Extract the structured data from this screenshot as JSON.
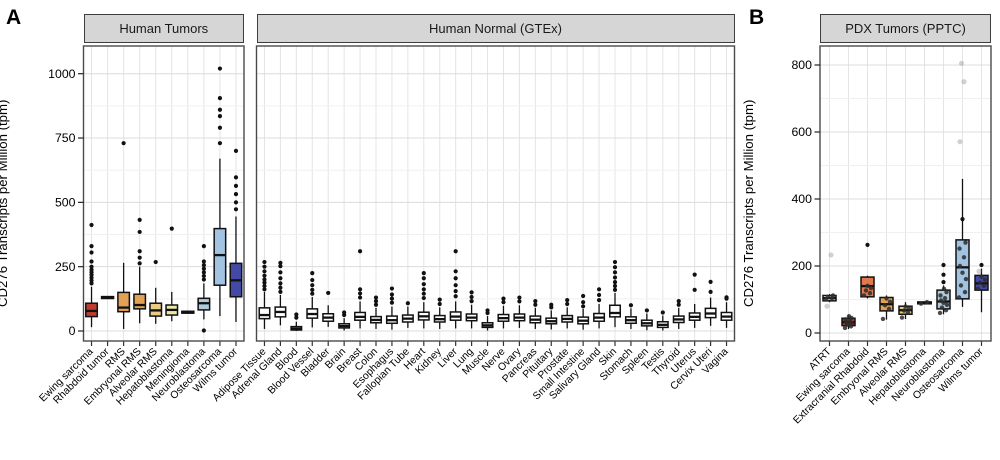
{
  "labels": {
    "panel_a": "A",
    "panel_b": "B",
    "y_axis_a": "CD276 Transcripts per Million (tpm)",
    "y_axis_b": "CD276 Transcripts per Million (tpm)",
    "facet_tumors": "Human Tumors",
    "facet_gtex": "Human Normal (GTEx)",
    "facet_pdx": "PDX Tumors (PPTC)"
  },
  "colors": {
    "ewing_red": "#bf3b2f",
    "rms_orange": "#e2a155",
    "alveolar_tan": "#e9cd84",
    "hepato_yellow": "#ece9a6",
    "neuro_lightblue": "#aecbdc",
    "osteo_blue": "#a2c4e2",
    "wilms_darkblue": "#4349a5",
    "rhabdoid_coral": "#e0794e",
    "facet_header_gray": "#d6d6d6",
    "gtex_white": "#ffffff"
  },
  "chart_data": [
    {
      "id": "human_tumors",
      "type": "boxplot",
      "facet": "Human Tumors",
      "ylabel": "CD276 Transcripts per Million (tpm)",
      "yticks": [
        0,
        250,
        500,
        750,
        1000
      ],
      "ylim": [
        0,
        1050
      ],
      "grid": true,
      "boxes": [
        {
          "label": "Ewing sarcoma",
          "color": "#bf3b2f",
          "q1": 56,
          "median": 78,
          "q3": 108,
          "whisker_low": 15,
          "whisker_high": 172,
          "outliers": [
            185,
            196,
            207,
            218,
            228,
            238,
            250,
            270,
            305,
            330,
            412
          ]
        },
        {
          "label": "Rhabdoid tumor",
          "color": "#1a1a1a",
          "dash": true,
          "median": 130
        },
        {
          "label": "RMS",
          "color": "#e2a155",
          "q1": 75,
          "median": 91,
          "q3": 150,
          "whisker_low": 8,
          "whisker_high": 265,
          "outliers": [
            730
          ]
        },
        {
          "label": "Embryonal RMS",
          "color": "#e2a155",
          "q1": 86,
          "median": 101,
          "q3": 143,
          "whisker_low": 30,
          "whisker_high": 250,
          "outliers": [
            263,
            285,
            310,
            385,
            432
          ]
        },
        {
          "label": "Alveolar RMS",
          "color": "#e9cd84",
          "q1": 58,
          "median": 80,
          "q3": 108,
          "whisker_low": 28,
          "whisker_high": 168,
          "outliers": [
            268
          ]
        },
        {
          "label": "Hepatoblastoma",
          "color": "#ece9a6",
          "q1": 62,
          "median": 82,
          "q3": 101,
          "whisker_low": 38,
          "whisker_high": 152,
          "outliers": [
            398
          ]
        },
        {
          "label": "Meningioma",
          "color": "#1a1a1a",
          "dash": true,
          "median": 73
        },
        {
          "label": "Neuroblastoma",
          "color": "#aecbdc",
          "q1": 82,
          "median": 108,
          "q3": 127,
          "whisker_low": 45,
          "whisker_high": 185,
          "outliers": [
            2,
            200,
            214,
            228,
            242,
            256,
            270,
            330
          ]
        },
        {
          "label": "Osteosarcoma",
          "color": "#a2c4e2",
          "q1": 178,
          "median": 295,
          "q3": 398,
          "whisker_low": 58,
          "whisker_high": 670,
          "outliers": [
            730,
            790,
            835,
            860,
            905,
            1020
          ]
        },
        {
          "label": "Wilms tumor",
          "color": "#4349a5",
          "q1": 133,
          "median": 197,
          "q3": 263,
          "whisker_low": 35,
          "whisker_high": 445,
          "outliers": [
            473,
            500,
            532,
            564,
            597,
            700
          ]
        }
      ]
    },
    {
      "id": "gtex_normal",
      "type": "boxplot",
      "facet": "Human Normal (GTEx)",
      "ylabel": "CD276 Transcripts per Million (tpm)",
      "yticks": [
        0,
        250,
        500,
        750,
        1000
      ],
      "ylim": [
        0,
        1050
      ],
      "grid": true,
      "boxes": [
        {
          "label": "Adipose Tissue",
          "color": "#ffffff",
          "q1": 48,
          "median": 62,
          "q3": 90,
          "whisker_low": 8,
          "whisker_high": 152,
          "outliers": [
            162,
            175,
            188,
            200,
            215,
            232,
            250,
            268
          ]
        },
        {
          "label": "Adrenal Gland",
          "color": "#ffffff",
          "q1": 55,
          "median": 74,
          "q3": 93,
          "whisker_low": 22,
          "whisker_high": 140,
          "outliers": [
            152,
            168,
            185,
            205,
            228,
            252,
            265
          ]
        },
        {
          "label": "Blood",
          "color": "#ffffff",
          "q1": 4,
          "median": 9,
          "q3": 17,
          "whisker_low": 0,
          "whisker_high": 36,
          "outliers": [
            52,
            64
          ]
        },
        {
          "label": "Blood Vessel",
          "color": "#ffffff",
          "q1": 50,
          "median": 66,
          "q3": 86,
          "whisker_low": 14,
          "whisker_high": 132,
          "outliers": [
            145,
            160,
            178,
            198,
            225
          ]
        },
        {
          "label": "Bladder",
          "color": "#ffffff",
          "q1": 38,
          "median": 52,
          "q3": 67,
          "whisker_low": 16,
          "whisker_high": 100,
          "outliers": [
            148
          ]
        },
        {
          "label": "Brain",
          "color": "#ffffff",
          "q1": 12,
          "median": 19,
          "q3": 28,
          "whisker_low": 2,
          "whisker_high": 50,
          "outliers": [
            62,
            72
          ]
        },
        {
          "label": "Breast",
          "color": "#ffffff",
          "q1": 42,
          "median": 55,
          "q3": 72,
          "whisker_low": 10,
          "whisker_high": 115,
          "outliers": [
            130,
            146,
            162,
            310
          ]
        },
        {
          "label": "Colon",
          "color": "#ffffff",
          "q1": 32,
          "median": 43,
          "q3": 56,
          "whisker_low": 8,
          "whisker_high": 90,
          "outliers": [
            102,
            116,
            130
          ]
        },
        {
          "label": "Esophagus",
          "color": "#ffffff",
          "q1": 30,
          "median": 42,
          "q3": 58,
          "whisker_low": 5,
          "whisker_high": 95,
          "outliers": [
            110,
            126,
            142,
            165
          ]
        },
        {
          "label": "Fallopian Tube",
          "color": "#ffffff",
          "q1": 35,
          "median": 48,
          "q3": 62,
          "whisker_low": 12,
          "whisker_high": 95,
          "outliers": [
            108
          ]
        },
        {
          "label": "Heart",
          "color": "#ffffff",
          "q1": 43,
          "median": 57,
          "q3": 73,
          "whisker_low": 10,
          "whisker_high": 112,
          "outliers": [
            128,
            145,
            162,
            182,
            205,
            225
          ]
        },
        {
          "label": "Kidney",
          "color": "#ffffff",
          "q1": 35,
          "median": 46,
          "q3": 60,
          "whisker_low": 8,
          "whisker_high": 92,
          "outliers": [
            105,
            122
          ]
        },
        {
          "label": "Liver",
          "color": "#ffffff",
          "q1": 42,
          "median": 56,
          "q3": 74,
          "whisker_low": 10,
          "whisker_high": 115,
          "outliers": [
            135,
            155,
            178,
            205,
            232,
            310
          ]
        },
        {
          "label": "Lung",
          "color": "#ffffff",
          "q1": 40,
          "median": 52,
          "q3": 66,
          "whisker_low": 10,
          "whisker_high": 102,
          "outliers": [
            116,
            132,
            150
          ]
        },
        {
          "label": "Muscle",
          "color": "#ffffff",
          "q1": 14,
          "median": 22,
          "q3": 32,
          "whisker_low": 2,
          "whisker_high": 58,
          "outliers": [
            70,
            80
          ]
        },
        {
          "label": "Nerve",
          "color": "#ffffff",
          "q1": 38,
          "median": 50,
          "q3": 64,
          "whisker_low": 10,
          "whisker_high": 98,
          "outliers": [
            112,
            126
          ]
        },
        {
          "label": "Ovary",
          "color": "#ffffff",
          "q1": 40,
          "median": 52,
          "q3": 66,
          "whisker_low": 12,
          "whisker_high": 100,
          "outliers": [
            115,
            130
          ]
        },
        {
          "label": "Pancreas",
          "color": "#ffffff",
          "q1": 32,
          "median": 44,
          "q3": 58,
          "whisker_low": 8,
          "whisker_high": 90,
          "outliers": [
            102,
            116
          ]
        },
        {
          "label": "Pituitary",
          "color": "#ffffff",
          "q1": 28,
          "median": 38,
          "q3": 50,
          "whisker_low": 6,
          "whisker_high": 80,
          "outliers": [
            92,
            102
          ]
        },
        {
          "label": "Prostate",
          "color": "#ffffff",
          "q1": 35,
          "median": 47,
          "q3": 60,
          "whisker_low": 10,
          "whisker_high": 92,
          "outliers": [
            105,
            120
          ]
        },
        {
          "label": "Small Intestine",
          "color": "#ffffff",
          "q1": 28,
          "median": 40,
          "q3": 54,
          "whisker_low": 5,
          "whisker_high": 86,
          "outliers": [
            96,
            112,
            136
          ]
        },
        {
          "label": "Salivary Gland",
          "color": "#ffffff",
          "q1": 38,
          "median": 52,
          "q3": 68,
          "whisker_low": 10,
          "whisker_high": 105,
          "outliers": [
            120,
            140,
            162
          ]
        },
        {
          "label": "Skin",
          "color": "#ffffff",
          "q1": 55,
          "median": 70,
          "q3": 100,
          "whisker_low": 15,
          "whisker_high": 148,
          "outliers": [
            160,
            175,
            190,
            208,
            228,
            248,
            268
          ]
        },
        {
          "label": "Stomach",
          "color": "#ffffff",
          "q1": 30,
          "median": 42,
          "q3": 55,
          "whisker_low": 8,
          "whisker_high": 88,
          "outliers": [
            100
          ]
        },
        {
          "label": "Spleen",
          "color": "#ffffff",
          "q1": 20,
          "median": 30,
          "q3": 42,
          "whisker_low": 3,
          "whisker_high": 68,
          "outliers": [
            80
          ]
        },
        {
          "label": "Testis",
          "color": "#ffffff",
          "q1": 14,
          "median": 24,
          "q3": 36,
          "whisker_low": 2,
          "whisker_high": 60,
          "outliers": [
            72
          ]
        },
        {
          "label": "Thyroid",
          "color": "#ffffff",
          "q1": 33,
          "median": 45,
          "q3": 58,
          "whisker_low": 8,
          "whisker_high": 90,
          "outliers": [
            102,
            116
          ]
        },
        {
          "label": "Uterus",
          "color": "#ffffff",
          "q1": 42,
          "median": 55,
          "q3": 70,
          "whisker_low": 12,
          "whisker_high": 105,
          "outliers": [
            160,
            219
          ]
        },
        {
          "label": "Cervix Uteri",
          "color": "#ffffff",
          "q1": 52,
          "median": 68,
          "q3": 88,
          "whisker_low": 20,
          "whisker_high": 130,
          "outliers": [
            152,
            191
          ]
        },
        {
          "label": "Vagina",
          "color": "#ffffff",
          "q1": 42,
          "median": 56,
          "q3": 72,
          "whisker_low": 12,
          "whisker_high": 112,
          "outliers": [
            126,
            131
          ]
        }
      ]
    },
    {
      "id": "pdx_tumors",
      "type": "boxplot",
      "facet": "PDX Tumors (PPTC)",
      "ylabel": "CD276 Transcripts per Million (tpm)",
      "yticks": [
        0,
        200,
        400,
        600,
        800
      ],
      "ylim": [
        0,
        850
      ],
      "grid": true,
      "boxes": [
        {
          "label": "ATRT",
          "color": "#f0f0f0",
          "q1": 96,
          "median": 104,
          "q3": 112,
          "whisker_low": 92,
          "whisker_high": 116,
          "points": [
            100,
            104,
            108,
            112
          ],
          "faded_points": [
            80,
            233
          ]
        },
        {
          "label": "Ewing sarcoma",
          "color": "#bf3b2f",
          "q1": 22,
          "median": 32,
          "q3": 44,
          "whisker_low": 12,
          "whisker_high": 52,
          "points": [
            15,
            20,
            25,
            28,
            31,
            34,
            37,
            41,
            45,
            50
          ]
        },
        {
          "label": "Extracranial Rhabdoid",
          "color": "#e0794e",
          "q1": 108,
          "median": 140,
          "q3": 167,
          "whisker_low": 103,
          "whisker_high": 171,
          "outliers": [
            263
          ],
          "points": [
            112,
            119,
            127,
            134,
            141
          ]
        },
        {
          "label": "Embryonal RMS",
          "color": "#e2a155",
          "q1": 66,
          "median": 86,
          "q3": 106,
          "whisker_low": 40,
          "whisker_high": 112,
          "points": [
            42,
            72,
            83,
            93,
            103
          ]
        },
        {
          "label": "Alveolar RMS",
          "color": "#e9cd84",
          "q1": 56,
          "median": 68,
          "q3": 80,
          "whisker_low": 42,
          "whisker_high": 92,
          "points": [
            46,
            60,
            67,
            73,
            79
          ]
        },
        {
          "label": "Hepatoblastoma",
          "color": "#1a1a1a",
          "dash": true,
          "median": 90,
          "points": [
            88,
            92
          ]
        },
        {
          "label": "Neuroblastoma",
          "color": "#aecbdc",
          "q1": 72,
          "median": 94,
          "q3": 128,
          "whisker_low": 56,
          "whisker_high": 142,
          "outliers": [
            152,
            174,
            203
          ],
          "points": [
            60,
            68,
            76,
            84,
            90,
            97,
            104,
            112,
            122,
            132
          ]
        },
        {
          "label": "Osteosarcoma",
          "color": "#a2c4e2",
          "q1": 102,
          "median": 196,
          "q3": 278,
          "whisker_low": 78,
          "whisker_high": 460,
          "outliers": [
            340
          ],
          "points": [
            106,
            122,
            142,
            161,
            180,
            200,
            226,
            252,
            270
          ],
          "faded_points": [
            571,
            750,
            805
          ]
        },
        {
          "label": "Wilms tumor",
          "color": "#4349a5",
          "q1": 128,
          "median": 148,
          "q3": 172,
          "whisker_low": 62,
          "whisker_high": 192,
          "outliers": [
            203
          ],
          "points": [
            132,
            141,
            150,
            159,
            168
          ],
          "faded_points": [
            184
          ]
        }
      ]
    }
  ]
}
